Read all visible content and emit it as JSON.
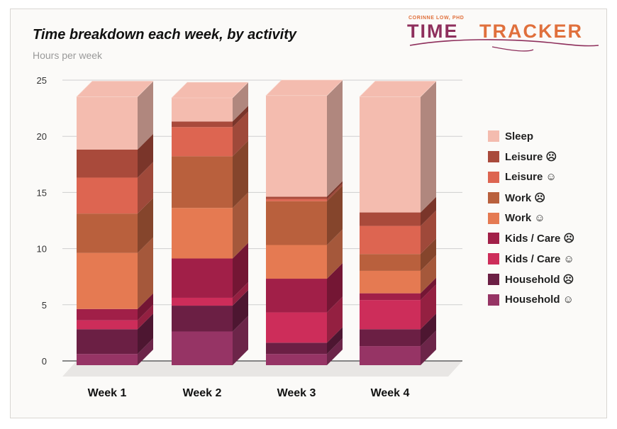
{
  "header": {
    "title": "Time breakdown each week, by activity",
    "subtitle": "Hours per week"
  },
  "logo": {
    "byline": "CORINNE LOW, PHD",
    "word1": "TIME",
    "word2": "TRACKER"
  },
  "chart_data": {
    "type": "bar",
    "stacked": true,
    "style": "3d",
    "title": "Time breakdown each week, by activity",
    "subtitle": "Hours per week",
    "ylabel": "",
    "ylim": [
      0,
      25
    ],
    "yticks": [
      0,
      5,
      10,
      15,
      20,
      25
    ],
    "grid": true,
    "legend_position": "right",
    "categories": [
      "Week 1",
      "Week 2",
      "Week 3",
      "Week 4"
    ],
    "series": [
      {
        "name": "Household ☺",
        "color": "#963465",
        "values": [
          1.0,
          3.0,
          1.0,
          1.7
        ]
      },
      {
        "name": "Household ☹",
        "color": "#6b1f44",
        "values": [
          2.2,
          2.3,
          1.0,
          1.5
        ]
      },
      {
        "name": "Kids / Care ☺",
        "color": "#cd2d5a",
        "values": [
          0.8,
          0.7,
          2.7,
          2.6
        ]
      },
      {
        "name": "Kids / Care ☹",
        "color": "#a11f48",
        "values": [
          1.0,
          3.5,
          3.0,
          0.6
        ]
      },
      {
        "name": "Work ☺",
        "color": "#e57a52",
        "values": [
          5.0,
          4.5,
          3.0,
          2.0
        ]
      },
      {
        "name": "Work ☹",
        "color": "#b9603d",
        "values": [
          3.5,
          4.6,
          3.9,
          1.5
        ]
      },
      {
        "name": "Leisure ☺",
        "color": "#dd6551",
        "values": [
          3.2,
          2.6,
          0.2,
          2.5
        ]
      },
      {
        "name": "Leisure ☹",
        "color": "#a94a3b",
        "values": [
          2.5,
          0.5,
          0.2,
          1.2
        ]
      },
      {
        "name": "Sleep",
        "color": "#f4bcaf",
        "values": [
          4.7,
          2.1,
          9.0,
          10.3
        ]
      }
    ]
  }
}
